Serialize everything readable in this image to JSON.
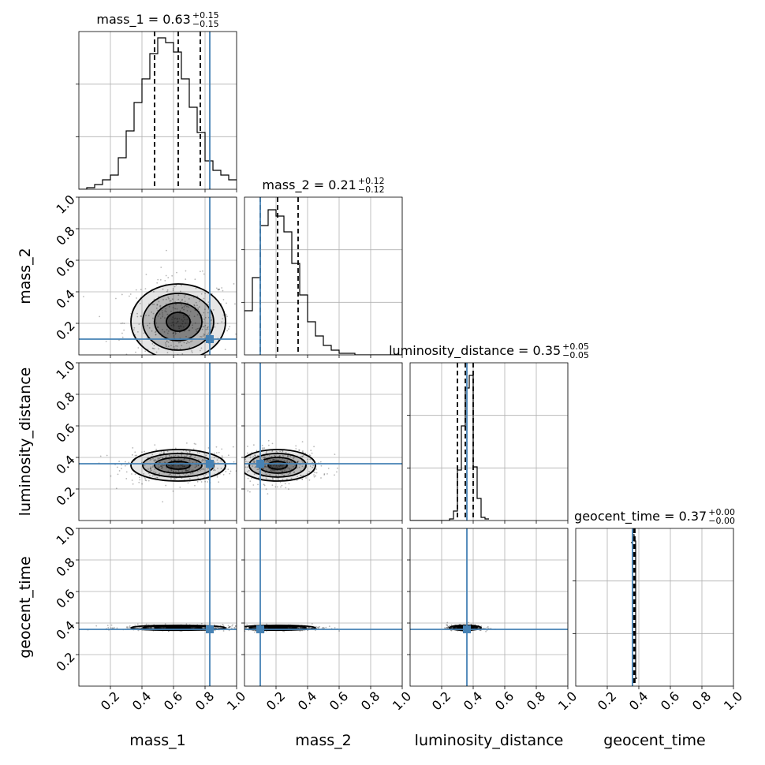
{
  "chart_data": {
    "type": "corner",
    "parameters": [
      "mass_1",
      "mass_2",
      "luminosity_distance",
      "geocent_time"
    ],
    "axis_labels": [
      "mass_1",
      "mass_2",
      "luminosity_distance",
      "geocent_time"
    ],
    "xlim": [
      0.0,
      1.0
    ],
    "ylim": [
      0.0,
      1.0
    ],
    "tick_values": [
      0.2,
      0.4,
      0.6,
      0.8,
      1.0
    ],
    "tick_labels": [
      "0.2",
      "0.4",
      "0.6",
      "0.8",
      "1.0"
    ],
    "grid": true,
    "truth_color": "#4682b4",
    "truths": [
      0.83,
      0.1,
      0.36,
      0.36
    ],
    "summaries": [
      {
        "name": "mass_1",
        "median": "0.63",
        "plus": "+0.15",
        "minus": "−0.15",
        "quantiles": [
          0.48,
          0.63,
          0.77
        ]
      },
      {
        "name": "mass_2",
        "median": "0.21",
        "plus": "+0.12",
        "minus": "−0.12",
        "quantiles": [
          0.1,
          0.21,
          0.34
        ]
      },
      {
        "name": "luminosity_distance",
        "median": "0.35",
        "plus": "+0.05",
        "minus": "−0.05",
        "quantiles": [
          0.3,
          0.35,
          0.4
        ]
      },
      {
        "name": "geocent_time",
        "median": "0.37",
        "plus": "+0.00",
        "minus": "−0.00",
        "quantiles": [
          0.362,
          0.37,
          0.375
        ]
      }
    ],
    "histograms": [
      {
        "name": "mass_1",
        "bin_start": 0.0,
        "bin_width": 0.05,
        "counts": [
          0,
          0.01,
          0.03,
          0.06,
          0.09,
          0.2,
          0.37,
          0.55,
          0.7,
          0.86,
          0.96,
          0.93,
          0.87,
          0.7,
          0.52,
          0.36,
          0.18,
          0.12,
          0.09,
          0.06
        ]
      },
      {
        "name": "mass_2",
        "bin_start": 0.0,
        "bin_width": 0.05,
        "counts": [
          0.28,
          0.49,
          0.82,
          0.92,
          0.88,
          0.78,
          0.58,
          0.38,
          0.21,
          0.12,
          0.06,
          0.03,
          0.01,
          0.01,
          0,
          0,
          0,
          0,
          0,
          0
        ]
      },
      {
        "name": "luminosity_distance",
        "bin_start": 0.0,
        "bin_width": 0.025,
        "counts": [
          0,
          0,
          0,
          0,
          0,
          0,
          0,
          0,
          0,
          0,
          0.01,
          0.06,
          0.32,
          0.6,
          0.84,
          0.92,
          0.34,
          0.14,
          0.02,
          0.01
        ]
      },
      {
        "name": "geocent_time",
        "bin_start": 0.35,
        "bin_width": 0.01,
        "counts": [
          0.91,
          0.96,
          0.92,
          0.05
        ]
      }
    ],
    "contours_2d": [
      {
        "x": "mass_1",
        "y": "mass_2",
        "center": [
          0.63,
          0.21
        ],
        "sigma": [
          0.15,
          0.12
        ]
      },
      {
        "x": "mass_1",
        "y": "luminosity_distance",
        "center": [
          0.63,
          0.35
        ],
        "sigma": [
          0.15,
          0.05
        ]
      },
      {
        "x": "mass_2",
        "y": "luminosity_distance",
        "center": [
          0.21,
          0.35
        ],
        "sigma": [
          0.12,
          0.05
        ]
      },
      {
        "x": "mass_1",
        "y": "geocent_time",
        "center": [
          0.63,
          0.37
        ],
        "sigma": [
          0.15,
          0.008
        ]
      },
      {
        "x": "mass_2",
        "y": "geocent_time",
        "center": [
          0.21,
          0.37
        ],
        "sigma": [
          0.12,
          0.008
        ]
      },
      {
        "x": "luminosity_distance",
        "y": "geocent_time",
        "center": [
          0.35,
          0.37
        ],
        "sigma": [
          0.05,
          0.008
        ]
      }
    ],
    "contour_levels_sigma": [
      0.5,
      1.0,
      1.5,
      2.0
    ]
  }
}
